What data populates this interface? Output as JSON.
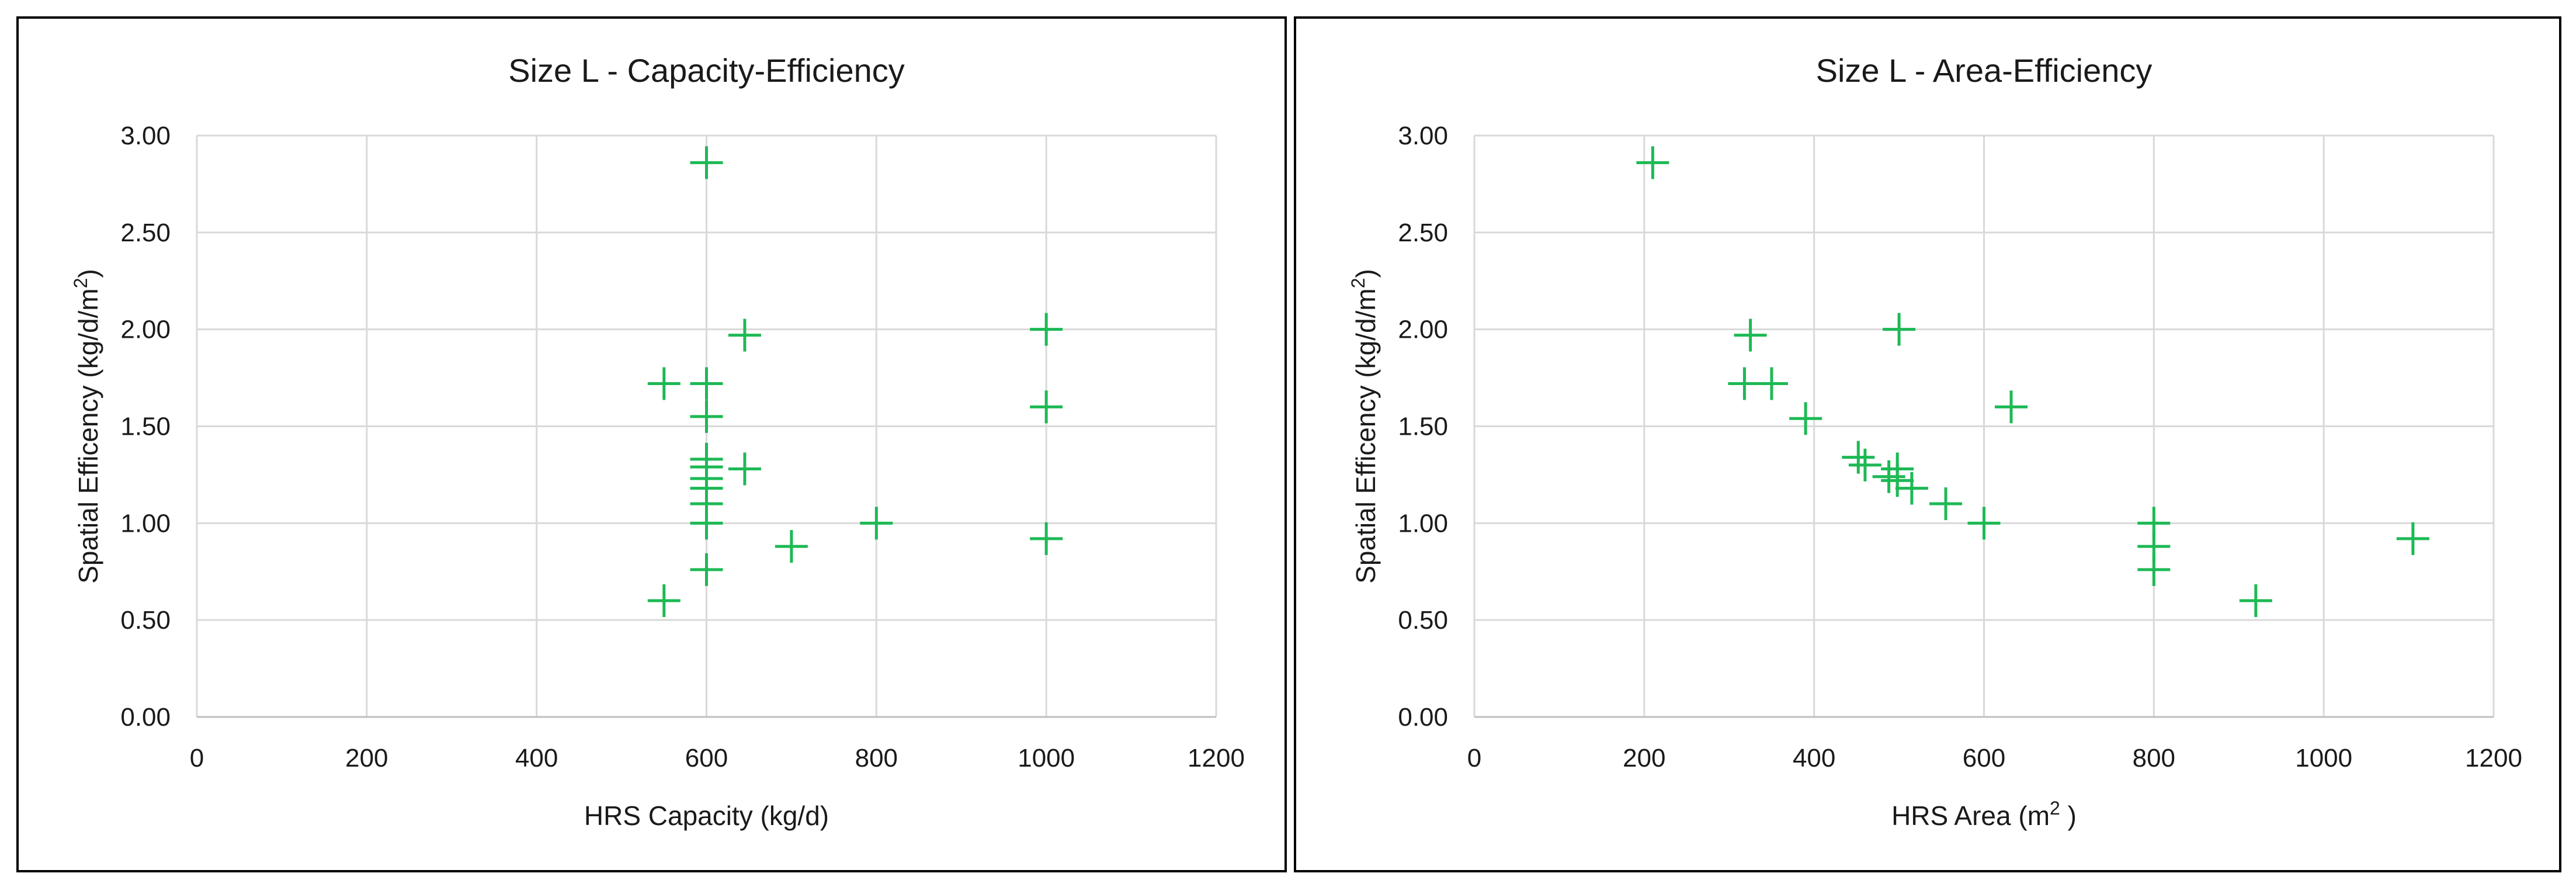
{
  "chart_data": [
    {
      "type": "scatter",
      "title": "Size L - Capacity-Efficiency",
      "xlabel": "HRS Capacity (kg/d)",
      "ylabel": "Spatial Efficency (kg/d/m",
      "ylabel_sup": "2",
      "ylabel_tail": ")",
      "xlim": [
        0,
        1200
      ],
      "ylim": [
        0,
        3
      ],
      "xticks": [
        0,
        200,
        400,
        600,
        800,
        1000,
        1200
      ],
      "yticks": [
        0,
        0.5,
        1,
        1.5,
        2,
        2.5,
        3
      ],
      "xtick_labels": [
        "0",
        "200",
        "400",
        "600",
        "800",
        "1000",
        "1200"
      ],
      "ytick_labels": [
        "0.00",
        "0.50",
        "1.00",
        "1.50",
        "2.00",
        "2.50",
        "3.00"
      ],
      "grid": true,
      "marker": "plus",
      "marker_color": "#1DB954",
      "series": [
        {
          "points": [
            [
              600,
              2.86
            ],
            [
              645,
              1.97
            ],
            [
              1000,
              2.0
            ],
            [
              550,
              1.72
            ],
            [
              600,
              1.72
            ],
            [
              1000,
              1.6
            ],
            [
              600,
              1.55
            ],
            [
              600,
              1.33
            ],
            [
              600,
              1.29
            ],
            [
              645,
              1.28
            ],
            [
              600,
              1.23
            ],
            [
              600,
              1.18
            ],
            [
              600,
              1.1
            ],
            [
              600,
              1.0
            ],
            [
              800,
              1.0
            ],
            [
              700,
              0.88
            ],
            [
              1000,
              0.92
            ],
            [
              600,
              0.76
            ],
            [
              550,
              0.6
            ]
          ]
        }
      ]
    },
    {
      "type": "scatter",
      "title": "Size L - Area-Efficiency",
      "xlabel": "HRS Area (m",
      "xlabel_sup": "2",
      "xlabel_tail": " )",
      "ylabel": "Spatial Efficency (kg/d/m",
      "ylabel_sup": "2",
      "ylabel_tail": ")",
      "xlim": [
        0,
        1200
      ],
      "ylim": [
        0,
        3
      ],
      "xticks": [
        0,
        200,
        400,
        600,
        800,
        1000,
        1200
      ],
      "yticks": [
        0,
        0.5,
        1,
        1.5,
        2,
        2.5,
        3
      ],
      "xtick_labels": [
        "0",
        "200",
        "400",
        "600",
        "800",
        "1000",
        "1200"
      ],
      "ytick_labels": [
        "0.00",
        "0.50",
        "1.00",
        "1.50",
        "2.00",
        "2.50",
        "3.00"
      ],
      "grid": true,
      "marker": "plus",
      "marker_color": "#1DB954",
      "series": [
        {
          "points": [
            [
              210,
              2.86
            ],
            [
              325,
              1.97
            ],
            [
              500,
              2.0
            ],
            [
              318,
              1.72
            ],
            [
              350,
              1.72
            ],
            [
              390,
              1.54
            ],
            [
              632,
              1.6
            ],
            [
              452,
              1.34
            ],
            [
              460,
              1.3
            ],
            [
              498,
              1.28
            ],
            [
              488,
              1.24
            ],
            [
              498,
              1.22
            ],
            [
              515,
              1.18
            ],
            [
              555,
              1.1
            ],
            [
              600,
              1.0
            ],
            [
              800,
              1.0
            ],
            [
              800,
              0.88
            ],
            [
              800,
              0.76
            ],
            [
              1105,
              0.92
            ],
            [
              920,
              0.6
            ]
          ]
        }
      ]
    }
  ]
}
